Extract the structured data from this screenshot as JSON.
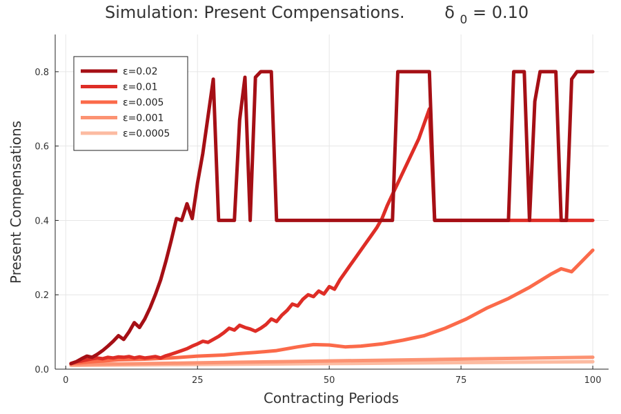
{
  "chart_data": {
    "type": "line",
    "title": "Simulation: Present Compensations.",
    "title_delta": {
      "symbol": "δ",
      "subscript": "0",
      "value_text": " = 0.10"
    },
    "xlabel": "Contracting Periods",
    "ylabel": "Present Compensations",
    "xlim": [
      -2,
      103
    ],
    "ylim": [
      0,
      0.9
    ],
    "xticks": [
      0,
      25,
      50,
      75,
      100
    ],
    "yticks": [
      0.0,
      0.2,
      0.4,
      0.6,
      0.8
    ],
    "xtick_labels": [
      "0",
      "25",
      "50",
      "75",
      "100"
    ],
    "ytick_labels": [
      "0.0",
      "0.2",
      "0.4",
      "0.6",
      "0.8"
    ],
    "grid": true,
    "legend_position": "top-left",
    "series": [
      {
        "name": "ε=0.02",
        "color": "#a50f15",
        "x": [
          1,
          2,
          3,
          4,
          5,
          6,
          7,
          8,
          9,
          10,
          11,
          12,
          13,
          14,
          15,
          16,
          17,
          18,
          19,
          20,
          21,
          22,
          23,
          24,
          25,
          26,
          27,
          28,
          29,
          30,
          31,
          32,
          33,
          34,
          35,
          36,
          37,
          38,
          39,
          40,
          41,
          42,
          43,
          44,
          45,
          46,
          47,
          48,
          49,
          50,
          51,
          52,
          53,
          54,
          55,
          56,
          57,
          58,
          59,
          60,
          61,
          62,
          63,
          64,
          65,
          66,
          67,
          68,
          69,
          70,
          71,
          72,
          73,
          74,
          75,
          76,
          77,
          78,
          79,
          80,
          81,
          82,
          83,
          84,
          85,
          86,
          87,
          88,
          89,
          90,
          91,
          92,
          93,
          94,
          95,
          96,
          97,
          98,
          99,
          100
        ],
        "y": [
          0.015,
          0.02,
          0.028,
          0.035,
          0.032,
          0.04,
          0.05,
          0.062,
          0.075,
          0.09,
          0.08,
          0.1,
          0.125,
          0.112,
          0.135,
          0.165,
          0.2,
          0.24,
          0.29,
          0.345,
          0.405,
          0.4,
          0.445,
          0.405,
          0.5,
          0.58,
          0.68,
          0.78,
          0.4,
          0.4,
          0.4,
          0.4,
          0.67,
          0.785,
          0.4,
          0.785,
          0.8,
          0.8,
          0.8,
          0.4,
          0.4,
          0.4,
          0.4,
          0.4,
          0.4,
          0.4,
          0.4,
          0.4,
          0.4,
          0.4,
          0.4,
          0.4,
          0.4,
          0.4,
          0.4,
          0.4,
          0.4,
          0.4,
          0.4,
          0.4,
          0.4,
          0.4,
          0.8,
          0.8,
          0.8,
          0.8,
          0.8,
          0.8,
          0.8,
          0.4,
          0.4,
          0.4,
          0.4,
          0.4,
          0.4,
          0.4,
          0.4,
          0.4,
          0.4,
          0.4,
          0.4,
          0.4,
          0.4,
          0.4,
          0.8,
          0.8,
          0.8,
          0.4,
          0.72,
          0.8,
          0.8,
          0.8,
          0.8,
          0.4,
          0.4,
          0.78,
          0.8,
          0.8,
          0.8,
          0.8
        ]
      },
      {
        "name": "ε=0.01",
        "color": "#de2d26",
        "x": [
          1,
          2,
          3,
          4,
          5,
          6,
          7,
          8,
          9,
          10,
          11,
          12,
          13,
          14,
          15,
          16,
          17,
          18,
          19,
          20,
          21,
          22,
          23,
          24,
          25,
          26,
          27,
          28,
          29,
          30,
          31,
          32,
          33,
          34,
          35,
          36,
          37,
          38,
          39,
          40,
          41,
          42,
          43,
          44,
          45,
          46,
          47,
          48,
          49,
          50,
          51,
          52,
          53,
          54,
          55,
          56,
          57,
          58,
          59,
          60,
          61,
          62,
          63,
          64,
          65,
          66,
          67,
          68,
          69,
          70,
          71,
          72,
          73,
          74,
          75,
          76,
          77,
          78,
          79,
          80,
          81,
          82,
          83,
          84,
          85,
          86,
          87,
          88,
          89,
          90,
          91,
          92,
          93,
          94,
          95,
          96,
          97,
          98,
          99,
          100
        ],
        "y": [
          0.015,
          0.02,
          0.022,
          0.025,
          0.028,
          0.03,
          0.028,
          0.032,
          0.03,
          0.033,
          0.032,
          0.034,
          0.03,
          0.033,
          0.03,
          0.032,
          0.034,
          0.03,
          0.036,
          0.04,
          0.045,
          0.05,
          0.055,
          0.062,
          0.068,
          0.075,
          0.072,
          0.08,
          0.088,
          0.098,
          0.11,
          0.105,
          0.118,
          0.112,
          0.108,
          0.102,
          0.11,
          0.12,
          0.135,
          0.128,
          0.145,
          0.158,
          0.175,
          0.17,
          0.188,
          0.2,
          0.195,
          0.21,
          0.202,
          0.222,
          0.215,
          0.24,
          0.26,
          0.28,
          0.3,
          0.32,
          0.34,
          0.36,
          0.38,
          0.405,
          0.44,
          0.47,
          0.5,
          0.53,
          0.56,
          0.59,
          0.62,
          0.66,
          0.7,
          0.4,
          0.4,
          0.4,
          0.4,
          0.4,
          0.4,
          0.4,
          0.4,
          0.4,
          0.4,
          0.4,
          0.4,
          0.4,
          0.4,
          0.4,
          0.4,
          0.4,
          0.4,
          0.4,
          0.4,
          0.4,
          0.4,
          0.4,
          0.4,
          0.4,
          0.4,
          0.4,
          0.4,
          0.4,
          0.4,
          0.4
        ]
      },
      {
        "name": "ε=0.005",
        "color": "#fb6a4a",
        "x": [
          1,
          5,
          10,
          15,
          20,
          25,
          30,
          33,
          36,
          40,
          44,
          47,
          50,
          53,
          56,
          60,
          64,
          68,
          72,
          76,
          80,
          84,
          88,
          92,
          94,
          96,
          100
        ],
        "y": [
          0.015,
          0.02,
          0.025,
          0.027,
          0.03,
          0.035,
          0.038,
          0.042,
          0.045,
          0.05,
          0.06,
          0.066,
          0.065,
          0.06,
          0.062,
          0.068,
          0.078,
          0.09,
          0.11,
          0.135,
          0.165,
          0.19,
          0.22,
          0.255,
          0.27,
          0.262,
          0.32
        ]
      },
      {
        "name": "ε=0.001",
        "color": "#fc9272",
        "x": [
          1,
          10,
          20,
          30,
          40,
          50,
          60,
          70,
          80,
          90,
          100
        ],
        "y": [
          0.012,
          0.014,
          0.016,
          0.018,
          0.02,
          0.022,
          0.024,
          0.026,
          0.028,
          0.03,
          0.032
        ]
      },
      {
        "name": "ε=0.0005",
        "color": "#fcbba1",
        "x": [
          1,
          10,
          20,
          30,
          40,
          50,
          60,
          70,
          80,
          90,
          100
        ],
        "y": [
          0.01,
          0.011,
          0.012,
          0.013,
          0.014,
          0.015,
          0.016,
          0.017,
          0.018,
          0.019,
          0.02
        ]
      }
    ]
  }
}
